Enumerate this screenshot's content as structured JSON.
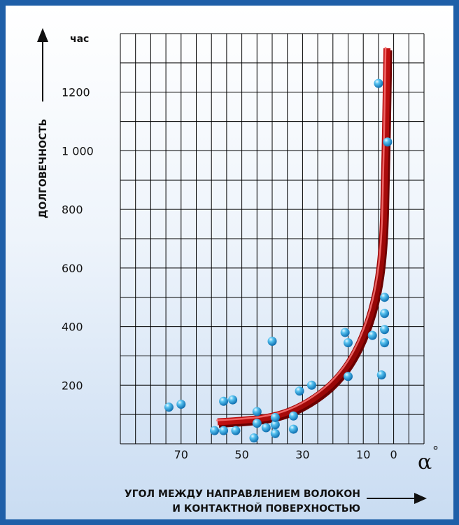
{
  "chart_data": {
    "type": "scatter",
    "title": "",
    "ylabel": "ДОЛГОВЕЧНОСТЬ",
    "yunit": "час",
    "xlabel_line1": "УГОЛ МЕЖДУ НАПРАВЛЕНИЕМ ВОЛОКОН",
    "xlabel_line2": "И КОНТАКТНОЙ ПОВЕРХНОСТЬЮ",
    "xsymbol": "α",
    "xsymbol_unit": "°",
    "xlim": [
      90,
      -10
    ],
    "ylim": [
      0,
      1400
    ],
    "x_tick_labels": [
      "70",
      "50",
      "30",
      "10",
      "0"
    ],
    "x_tick_values": [
      70,
      50,
      30,
      10,
      0
    ],
    "y_tick_labels": [
      "200",
      "400",
      "600",
      "800",
      "1 000",
      "1200"
    ],
    "y_tick_values": [
      200,
      400,
      600,
      800,
      1000,
      1200
    ],
    "grid": true,
    "grid_x_step": 5,
    "grid_y_step": 100,
    "points": [
      {
        "x": 74,
        "y": 125
      },
      {
        "x": 70,
        "y": 135
      },
      {
        "x": 56,
        "y": 145
      },
      {
        "x": 53,
        "y": 150
      },
      {
        "x": 59,
        "y": 45
      },
      {
        "x": 56,
        "y": 45
      },
      {
        "x": 52,
        "y": 45
      },
      {
        "x": 46,
        "y": 20
      },
      {
        "x": 45,
        "y": 70
      },
      {
        "x": 45,
        "y": 110
      },
      {
        "x": 42,
        "y": 55
      },
      {
        "x": 39,
        "y": 35
      },
      {
        "x": 39,
        "y": 65
      },
      {
        "x": 39,
        "y": 90
      },
      {
        "x": 40,
        "y": 350
      },
      {
        "x": 33,
        "y": 50
      },
      {
        "x": 33,
        "y": 95
      },
      {
        "x": 31,
        "y": 180
      },
      {
        "x": 27,
        "y": 200
      },
      {
        "x": 16,
        "y": 380
      },
      {
        "x": 15,
        "y": 345
      },
      {
        "x": 15,
        "y": 230
      },
      {
        "x": 7,
        "y": 370
      },
      {
        "x": 5,
        "y": 1230
      },
      {
        "x": 4,
        "y": 235
      },
      {
        "x": 3,
        "y": 500
      },
      {
        "x": 3,
        "y": 445
      },
      {
        "x": 3,
        "y": 390
      },
      {
        "x": 3,
        "y": 345
      },
      {
        "x": 2,
        "y": 1030
      }
    ],
    "trend_line": [
      {
        "x": 58,
        "y": 75
      },
      {
        "x": 50,
        "y": 80
      },
      {
        "x": 42,
        "y": 88
      },
      {
        "x": 34,
        "y": 110
      },
      {
        "x": 26,
        "y": 155
      },
      {
        "x": 19,
        "y": 215
      },
      {
        "x": 13,
        "y": 300
      },
      {
        "x": 8,
        "y": 420
      },
      {
        "x": 5,
        "y": 550
      },
      {
        "x": 3.5,
        "y": 700
      },
      {
        "x": 3,
        "y": 900
      },
      {
        "x": 2.5,
        "y": 1150
      },
      {
        "x": 2.2,
        "y": 1350
      }
    ],
    "colors": {
      "point": "#2fa6e0",
      "trend": "#c21010",
      "grid": "#000000",
      "border": "#1f5fa8"
    }
  }
}
